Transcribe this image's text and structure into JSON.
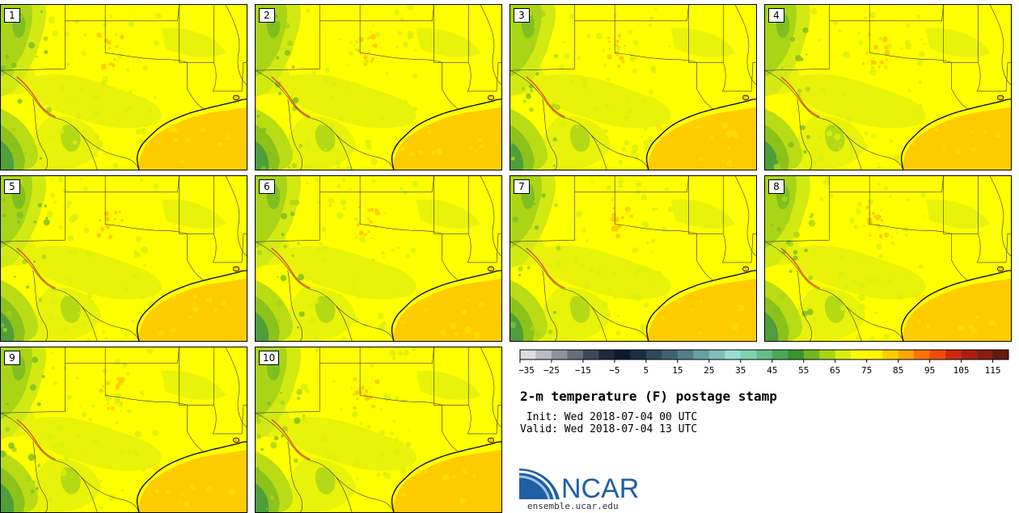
{
  "panels": [
    {
      "label": "1"
    },
    {
      "label": "2"
    },
    {
      "label": "3"
    },
    {
      "label": "4"
    },
    {
      "label": "5"
    },
    {
      "label": "6"
    },
    {
      "label": "7"
    },
    {
      "label": "8"
    },
    {
      "label": "9"
    },
    {
      "label": "10"
    }
  ],
  "colorbar": {
    "colors": [
      "#dcdde0",
      "#b9bcc3",
      "#8e949f",
      "#666e7c",
      "#3e4859",
      "#1f2a3b",
      "#0d1a2c",
      "#1a2f42",
      "#2c4a5b",
      "#3e6271",
      "#517e88",
      "#67a0a3",
      "#80c0bb",
      "#97e0d3",
      "#82d1ae",
      "#64bf86",
      "#49ab5a",
      "#3a952d",
      "#71b81d",
      "#a7d614",
      "#d8ee10",
      "#f9fa0a",
      "#fff700",
      "#ffcc00",
      "#ffa500",
      "#ff7300",
      "#f24c0b",
      "#cd2a0c",
      "#a91e12",
      "#861d12",
      "#641b10"
    ],
    "tick_labels": [
      "−35",
      "−25",
      "−15",
      "−5",
      "5",
      "15",
      "25",
      "35",
      "45",
      "55",
      "65",
      "75",
      "85",
      "95",
      "105",
      "115"
    ]
  },
  "title": "2-m temperature (F) postage stamp",
  "init_text": " Init: Wed 2018-07-04 00 UTC",
  "valid_text": "Valid: Wed 2018-07-04 13 UTC",
  "logo": {
    "name": "NCAR",
    "url": "ensemble.ucar.edu"
  }
}
